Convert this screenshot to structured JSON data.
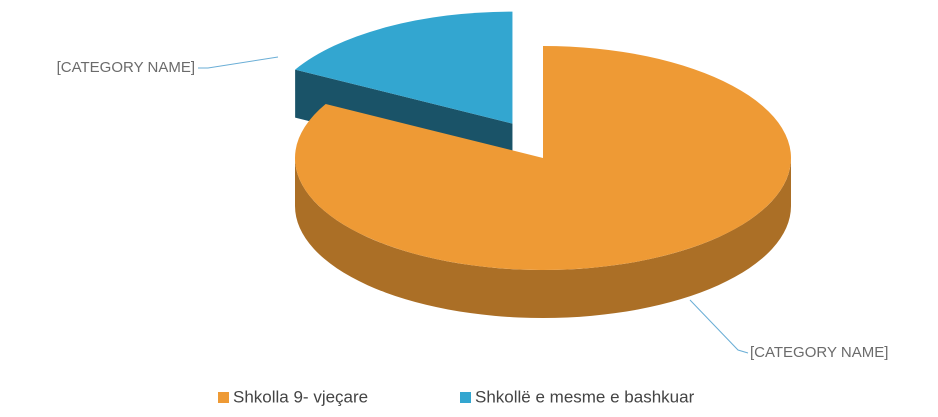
{
  "chart_data": {
    "type": "pie",
    "categories": [
      "Shkolla 9- vjeçare",
      "Shkollë e mesme e bashkuar"
    ],
    "values": [
      83,
      17
    ],
    "colors": [
      "#ee9a35",
      "#33a6d0"
    ],
    "data_labels": [
      "[CATEGORY NAME]",
      "[CATEGORY NAME]"
    ],
    "legend": "bottom"
  }
}
